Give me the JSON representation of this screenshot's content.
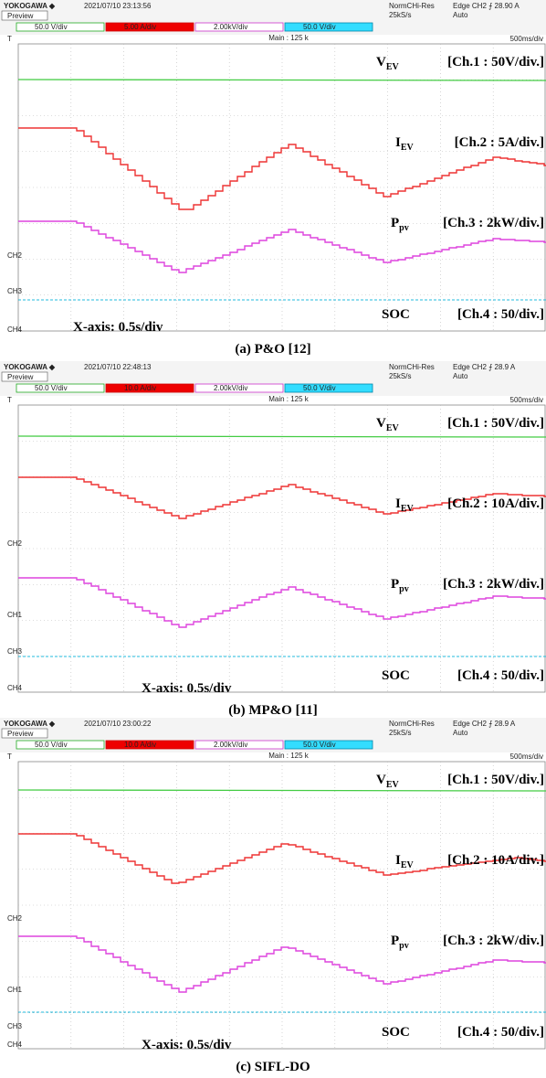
{
  "panels": [
    {
      "brand": "YOKOGAWA ◆",
      "datetime": "2021/07/10 23:13:56",
      "mode": "Preview",
      "acq": "NormCHi-Res",
      "rate": "25kS/s",
      "trigger": "Edge CH2 ⨍ 28.90 A",
      "trigger_mode": "Auto",
      "channels": [
        "50.0 V/div",
        "5.00 A/div",
        "2.00kV/div",
        "50.0 V/div"
      ],
      "main": "Main : 125 k",
      "timebase": "500ms/div",
      "markers": [
        "T",
        "CH2",
        "CH3",
        "CH4"
      ],
      "labels": {
        "v": {
          "main": "V",
          "sub": "EV",
          "scale": "[Ch.1 :  50V/div.]"
        },
        "i": {
          "main": "I",
          "sub": "EV",
          "scale": "[Ch.2 : 5A/div.]"
        },
        "p": {
          "main": "P",
          "sub": "pv",
          "scale": "[Ch.3 : 2kW/div.]"
        },
        "soc": {
          "main": "SOC",
          "scale": "[Ch.4 : 50/div.]"
        }
      },
      "xaxis": "X-axis: 0.5s/div",
      "caption": "(a) P&O [12]"
    },
    {
      "brand": "YOKOGAWA ◆",
      "datetime": "2021/07/10 22:48:13",
      "mode": "Preview",
      "acq": "NormCHi-Res",
      "rate": "25kS/s",
      "trigger": "Edge CH2 ⨍ 28.9 A",
      "trigger_mode": "Auto",
      "channels": [
        "50.0 V/div",
        "10.0 A/div",
        "2.00kV/div",
        "50.0 V/div"
      ],
      "main": "Main : 125 k",
      "timebase": "500ms/div",
      "markers": [
        "T",
        "CH2",
        "CH1",
        "CH3",
        "CH4"
      ],
      "labels": {
        "v": {
          "main": "V",
          "sub": "EV",
          "scale": "[Ch.1 :  50V/div.]"
        },
        "i": {
          "main": "I",
          "sub": "EV",
          "scale": "[Ch.2 : 10A/div.]"
        },
        "p": {
          "main": "P",
          "sub": "pv",
          "scale": "[Ch.3 : 2kW/div.]"
        },
        "soc": {
          "main": "SOC",
          "scale": "[Ch.4 : 50/div.]"
        }
      },
      "xaxis": "X-axis: 0.5s/div",
      "caption": "(b) MP&O [11]"
    },
    {
      "brand": "YOKOGAWA ◆",
      "datetime": "2021/07/10 23:00:22",
      "mode": "Preview",
      "acq": "NormCHi-Res",
      "rate": "25kS/s",
      "trigger": "Edge CH2 ⨍ 28.9 A",
      "trigger_mode": "Auto",
      "channels": [
        "50.0 V/div",
        "10.0 A/div",
        "2.00kV/div",
        "50.0 V/div"
      ],
      "main": "Main : 125 k",
      "timebase": "500ms/div",
      "markers": [
        "T",
        "CH2",
        "CH1",
        "CH3",
        "CH4"
      ],
      "labels": {
        "v": {
          "main": "V",
          "sub": "EV",
          "scale": "[Ch.1 :  50V/div.]"
        },
        "i": {
          "main": "I",
          "sub": "EV",
          "scale": "[Ch.2 : 10A/div.]"
        },
        "p": {
          "main": "P",
          "sub": "pv",
          "scale": "[Ch.3 : 2kW/div.]"
        },
        "soc": {
          "main": "SOC",
          "scale": "[Ch.4 : 50/div.]"
        }
      },
      "xaxis": "X-axis: 0.5s/div",
      "caption": "(c) SIFL-DO"
    }
  ]
}
